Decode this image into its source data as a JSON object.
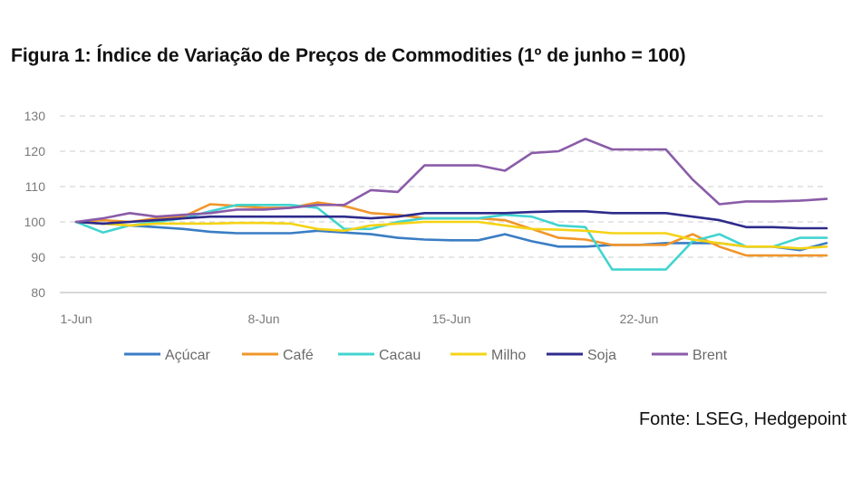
{
  "chart_data": {
    "type": "line",
    "title": "Figura 1: Índice de Variação de Preços de Commodities (1º de junho = 100)",
    "xlabel": "",
    "ylabel": "",
    "x": [
      1,
      2,
      3,
      4,
      5,
      6,
      7,
      8,
      9,
      10,
      11,
      12,
      13,
      14,
      15,
      16,
      17,
      18,
      19,
      20,
      21,
      22,
      23,
      24,
      25,
      26,
      27,
      28,
      29
    ],
    "x_tick_values": [
      1,
      8,
      15,
      22
    ],
    "x_tick_labels": [
      "1-Jun",
      "8-Jun",
      "15-Jun",
      "22-Jun"
    ],
    "ylim": [
      80,
      130
    ],
    "y_ticks": [
      80,
      90,
      100,
      110,
      120,
      130
    ],
    "grid": "horizontal-dashed",
    "legend_position": "bottom",
    "series": [
      {
        "name": "Açúcar",
        "color": "#3a7dc4",
        "values": [
          100,
          99.5,
          99,
          98.5,
          98,
          97.2,
          96.8,
          96.8,
          96.8,
          97.5,
          97,
          96.5,
          95.5,
          95,
          94.8,
          94.8,
          96.5,
          94.5,
          93,
          93,
          93.5,
          93.5,
          94,
          94,
          94,
          93,
          93,
          92,
          94
        ]
      },
      {
        "name": "Café",
        "color": "#f0962a",
        "values": [
          100,
          100.5,
          100,
          101,
          101.5,
          105,
          104.5,
          104,
          104,
          105.5,
          104.5,
          102.5,
          102,
          101,
          101,
          101,
          100.5,
          98,
          95.5,
          95,
          93.5,
          93.5,
          93.5,
          96.5,
          93,
          90.5,
          90.5,
          90.5,
          90.5
        ]
      },
      {
        "name": "Cacau",
        "color": "#42d4d0",
        "values": [
          100,
          97,
          99,
          100,
          101,
          103,
          104.8,
          104.8,
          104.8,
          104,
          98,
          98,
          100,
          101,
          101,
          101,
          102,
          101.5,
          99,
          98.5,
          86.5,
          86.5,
          86.5,
          94.5,
          96.5,
          93,
          93,
          95.5,
          95.5
        ]
      },
      {
        "name": "Milho",
        "color": "#f5d316",
        "values": [
          100,
          99.5,
          99,
          99.5,
          99.5,
          99.5,
          99.7,
          99.7,
          99.5,
          98,
          97.5,
          99,
          99.5,
          100,
          100,
          100,
          99,
          98,
          97.8,
          97.5,
          96.8,
          96.8,
          96.8,
          95,
          94,
          93,
          93,
          92.5,
          93
        ]
      },
      {
        "name": "Soja",
        "color": "#2e2b8c",
        "values": [
          100,
          99.5,
          100,
          100.5,
          101,
          101.5,
          101.5,
          101.5,
          101.5,
          101.5,
          101.5,
          101,
          101.5,
          102.5,
          102.5,
          102.5,
          102.5,
          102.8,
          103,
          103,
          102.5,
          102.5,
          102.5,
          101.5,
          100.5,
          98.5,
          98.5,
          98.2,
          98.2
        ]
      },
      {
        "name": "Brent",
        "color": "#8a5ca8",
        "values": [
          100,
          101,
          102.5,
          101.5,
          102,
          102.5,
          103.5,
          103.5,
          104,
          104.8,
          104.8,
          109,
          108.5,
          116,
          116,
          116,
          114.5,
          119.5,
          120,
          123.5,
          120.5,
          120.5,
          120.5,
          112,
          105,
          105.8,
          105.8,
          106,
          106.5
        ]
      }
    ]
  },
  "source": "Fonte: LSEG, Hedgepoint"
}
